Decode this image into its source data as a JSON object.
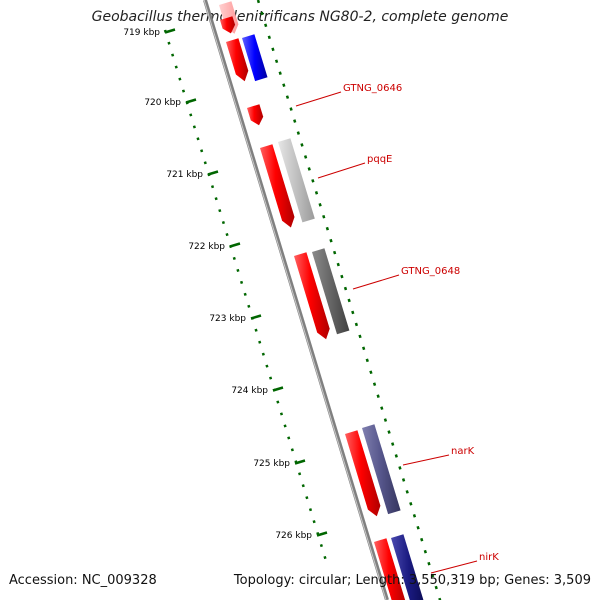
{
  "title": "Geobacillus thermodenitrificans NG80-2, complete genome",
  "accession_label": "Accession: NC_009328",
  "summary_label": "Topology: circular; Length: 3,550,319 bp; Genes: 3,509",
  "ruler_ticks": [
    {
      "label": "719 kbp"
    },
    {
      "label": "720 kbp"
    },
    {
      "label": "721 kbp"
    },
    {
      "label": "722 kbp"
    },
    {
      "label": "723 kbp"
    },
    {
      "label": "724 kbp"
    },
    {
      "label": "725 kbp"
    },
    {
      "label": "726 kbp"
    }
  ],
  "gene_labels": [
    {
      "name": "GTNG_0646"
    },
    {
      "name": "pqqE"
    },
    {
      "name": "GTNG_0648"
    },
    {
      "name": "narK"
    },
    {
      "name": "nirK"
    }
  ],
  "colors": {
    "cds": "#ff0000",
    "label": "#cc0000",
    "tick": "#006600",
    "backbone": "#808080",
    "feature_blue": "#0000ff",
    "feature_lightgray": "#c0c0c0",
    "feature_darkgray": "#666666",
    "feature_slate": "#55558a",
    "feature_navy": "#1a1a80"
  }
}
